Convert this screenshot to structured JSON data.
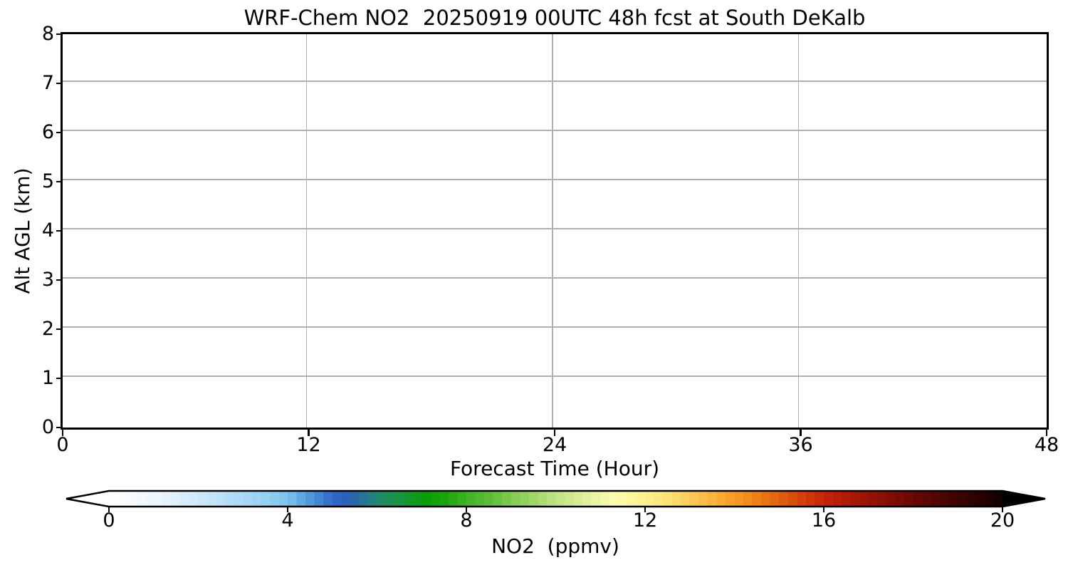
{
  "chart_data": {
    "type": "heatmap",
    "title": "WRF-Chem NO2  20250919 00UTC 48h fcst at South DeKalb",
    "xlabel": "Forecast Time (Hour)",
    "ylabel": "Alt AGL (km)",
    "xlim": [
      0,
      48
    ],
    "ylim": [
      0,
      8
    ],
    "x_ticks": [
      "0",
      "12",
      "24",
      "36",
      "48"
    ],
    "x_tick_values": [
      0,
      12,
      24,
      36,
      48
    ],
    "y_ticks": [
      "0",
      "1",
      "2",
      "3",
      "4",
      "5",
      "6",
      "7",
      "8"
    ],
    "y_tick_values": [
      0,
      1,
      2,
      3,
      4,
      5,
      6,
      7,
      8
    ],
    "grid": true,
    "grid_color": "#b0b0b0",
    "spine_color": "#000000",
    "field": "empty - entire time-height cross-section renders white (values at/below lowest contour level, no visible NO2 structure)",
    "colorbar": {
      "label": "NO2  (ppmv)",
      "ticks": [
        "0",
        "4",
        "8",
        "12",
        "16",
        "20"
      ],
      "tick_values": [
        0,
        4,
        8,
        12,
        16,
        20
      ],
      "range": [
        0,
        20
      ],
      "extend": "both",
      "under_color": "#ffffff",
      "over_color": "#000000",
      "stops": [
        [
          0.0,
          "#ffffff"
        ],
        [
          1.0,
          "#edf6fd"
        ],
        [
          2.0,
          "#cfe9fa"
        ],
        [
          3.0,
          "#a9d9f6"
        ],
        [
          3.5,
          "#95cff2"
        ],
        [
          4.0,
          "#7cc4ee"
        ],
        [
          4.3,
          "#5da9e0"
        ],
        [
          4.6,
          "#4590d6"
        ],
        [
          4.9,
          "#3472cc"
        ],
        [
          5.2,
          "#2d5fc4"
        ],
        [
          5.5,
          "#2b66a8"
        ],
        [
          5.8,
          "#277b88"
        ],
        [
          6.1,
          "#218868"
        ],
        [
          6.4,
          "#1b914a"
        ],
        [
          6.7,
          "#12982a"
        ],
        [
          7.1,
          "#0a9d08"
        ],
        [
          7.5,
          "#18a40a"
        ],
        [
          8.0,
          "#3fb224"
        ],
        [
          8.5,
          "#5cbc38"
        ],
        [
          9.0,
          "#7fca50"
        ],
        [
          9.5,
          "#a0d668"
        ],
        [
          10.0,
          "#bfe382"
        ],
        [
          10.5,
          "#d8ec96"
        ],
        [
          11.0,
          "#f0f6a8"
        ],
        [
          11.3,
          "#fdfbb0"
        ],
        [
          11.7,
          "#fef69c"
        ],
        [
          12.2,
          "#fdec85"
        ],
        [
          12.7,
          "#fcd96a"
        ],
        [
          13.2,
          "#fcc24e"
        ],
        [
          13.7,
          "#fbaa32"
        ],
        [
          14.2,
          "#f5921e"
        ],
        [
          14.7,
          "#ea7412"
        ],
        [
          15.2,
          "#dd540c"
        ],
        [
          15.7,
          "#cf3508"
        ],
        [
          16.1,
          "#c32208"
        ],
        [
          16.6,
          "#ac1806"
        ],
        [
          17.1,
          "#951105"
        ],
        [
          17.6,
          "#7d0c04"
        ],
        [
          18.1,
          "#650803"
        ],
        [
          18.6,
          "#4e0502"
        ],
        [
          19.1,
          "#380301"
        ],
        [
          19.6,
          "#230200"
        ],
        [
          20.0,
          "#0d0000"
        ]
      ]
    }
  }
}
